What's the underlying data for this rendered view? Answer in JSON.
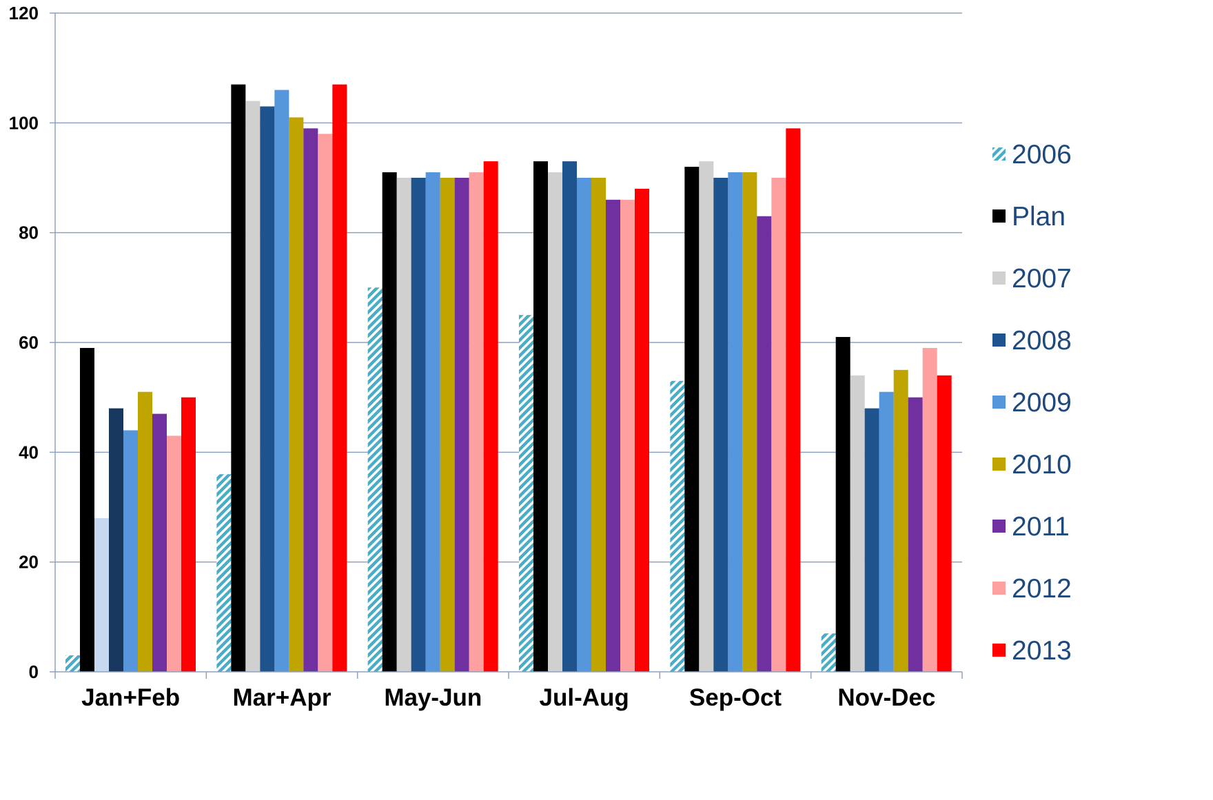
{
  "chart_data": {
    "type": "bar",
    "title": "",
    "xlabel": "",
    "ylabel": "",
    "ylim": [
      0,
      120
    ],
    "yticks": [
      0,
      20,
      40,
      60,
      80,
      100,
      120
    ],
    "grid": true,
    "legend_position": "right",
    "categories": [
      "Jan+Feb",
      "Mar+Apr",
      "May-Jun",
      "Jul-Aug",
      "Sep-Oct",
      "Nov-Dec"
    ],
    "series": [
      {
        "name": "2006",
        "color": "#4BACC6",
        "pattern": "diagonal-hatch",
        "values": [
          3,
          36,
          70,
          65,
          53,
          7
        ]
      },
      {
        "name": "Plan",
        "color": "#000000",
        "values": [
          59,
          107,
          91,
          93,
          92,
          61
        ]
      },
      {
        "name": "2007",
        "color": "#D0D0D0",
        "values": [
          28,
          104,
          90,
          91,
          93,
          54
        ]
      },
      {
        "name": "2008",
        "color": "#1F538D",
        "values": [
          48,
          103,
          90,
          93,
          90,
          48
        ]
      },
      {
        "name": "2009",
        "color": "#5596DD",
        "values": [
          44,
          106,
          91,
          90,
          91,
          51
        ]
      },
      {
        "name": "2010",
        "color": "#C0A400",
        "values": [
          51,
          101,
          90,
          90,
          91,
          55
        ]
      },
      {
        "name": "2011",
        "color": "#7030A0",
        "values": [
          47,
          99,
          90,
          86,
          83,
          50
        ]
      },
      {
        "name": "2012",
        "color": "#FFA0A0",
        "values": [
          43,
          98,
          91,
          86,
          90,
          59
        ]
      },
      {
        "name": "2013",
        "color": "#FF0000",
        "values": [
          50,
          107,
          93,
          88,
          99,
          54
        ]
      }
    ],
    "point_overrides": [
      {
        "series": "2007",
        "category": "Jan+Feb",
        "color": "#C6D9F1"
      },
      {
        "series": "2008",
        "category": "Jan+Feb",
        "color": "#17375E"
      }
    ]
  }
}
